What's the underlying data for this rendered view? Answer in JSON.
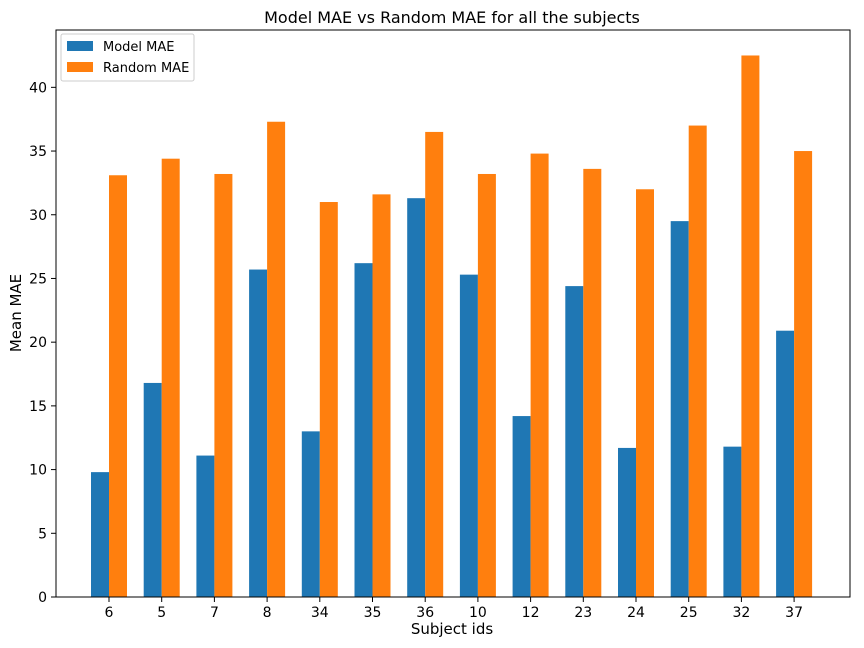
{
  "chart_data": {
    "type": "bar",
    "title": "Model MAE vs Random MAE for all the subjects",
    "xlabel": "Subject ids",
    "ylabel": "Mean MAE",
    "categories": [
      "6",
      "5",
      "7",
      "8",
      "34",
      "35",
      "36",
      "10",
      "12",
      "23",
      "24",
      "25",
      "32",
      "37"
    ],
    "series": [
      {
        "name": "Model MAE",
        "color": "#1f77b4",
        "values": [
          9.8,
          16.8,
          11.1,
          25.7,
          13.0,
          26.2,
          31.3,
          25.3,
          14.2,
          24.4,
          11.7,
          29.5,
          11.8,
          20.9
        ]
      },
      {
        "name": "Random MAE",
        "color": "#ff7f0e",
        "values": [
          33.1,
          34.4,
          33.2,
          37.3,
          31.0,
          31.6,
          36.5,
          33.2,
          34.8,
          33.6,
          32.0,
          37.0,
          42.5,
          35.0
        ]
      }
    ],
    "ylim": [
      0,
      44.5
    ],
    "yticks": [
      0,
      5,
      10,
      15,
      20,
      25,
      30,
      35,
      40
    ],
    "grid": false,
    "legend_position": "top-left"
  }
}
